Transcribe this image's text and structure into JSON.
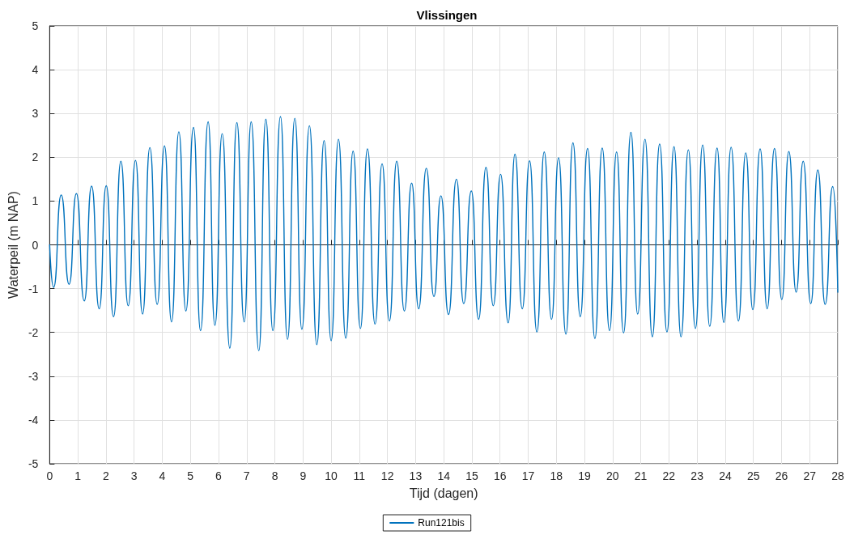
{
  "chart_data": {
    "type": "line",
    "title": "Vlissingen",
    "xlabel": "Tijd (dagen)",
    "ylabel": "Waterpeil (m NAP)",
    "xlim": [
      0,
      28
    ],
    "xticks": [
      0,
      1,
      2,
      3,
      4,
      5,
      6,
      7,
      8,
      9,
      10,
      11,
      12,
      13,
      14,
      15,
      16,
      17,
      18,
      19,
      20,
      21,
      22,
      23,
      24,
      25,
      26,
      27,
      28
    ],
    "ylim": [
      -5,
      5
    ],
    "yticks": [
      -5,
      -4,
      -3,
      -2,
      -1,
      0,
      1,
      2,
      3,
      4,
      5
    ],
    "grid": true,
    "legend": "bottom",
    "marker": "none",
    "line_style": "solid",
    "series": [
      {
        "name": "Run121bis",
        "color": "#0072bd",
        "x": [
          0,
          0.14,
          0.41,
          0.69,
          0.95,
          1.23,
          1.49,
          1.76,
          2.01,
          2.27,
          2.53,
          2.79,
          3.05,
          3.3,
          3.56,
          3.82,
          4.08,
          4.33,
          4.59,
          4.84,
          5.11,
          5.36,
          5.63,
          5.87,
          6.13,
          6.4,
          6.65,
          6.91,
          7.16,
          7.43,
          7.68,
          7.93,
          8.2,
          8.45,
          8.71,
          8.96,
          9.23,
          9.49,
          9.75,
          10.0,
          10.26,
          10.52,
          10.78,
          11.04,
          11.29,
          11.56,
          11.81,
          12.07,
          12.33,
          12.6,
          12.86,
          13.11,
          13.38,
          13.65,
          13.9,
          14.17,
          14.45,
          14.71,
          14.98,
          15.24,
          15.5,
          15.76,
          16.02,
          16.29,
          16.53,
          16.79,
          17.05,
          17.31,
          17.57,
          17.83,
          18.08,
          18.34,
          18.59,
          18.85,
          19.11,
          19.37,
          19.63,
          19.89,
          20.14,
          20.39,
          20.65,
          20.89,
          21.15,
          21.41,
          21.67,
          21.93,
          22.18,
          22.43,
          22.69,
          22.94,
          23.2,
          23.45,
          23.71,
          23.95,
          24.21,
          24.47,
          24.73,
          24.98,
          25.24,
          25.49,
          25.75,
          26.01,
          26.26,
          26.52,
          26.77,
          27.04,
          27.29,
          27.55,
          27.82,
          28.0
        ],
        "values": [
          0,
          -0.97,
          1.14,
          -0.9,
          1.17,
          -1.28,
          1.34,
          -1.46,
          1.35,
          -1.64,
          1.91,
          -1.39,
          1.93,
          -1.58,
          2.22,
          -1.36,
          2.26,
          -1.76,
          2.58,
          -1.51,
          2.68,
          -1.96,
          2.81,
          -1.84,
          2.54,
          -2.36,
          2.79,
          -1.76,
          2.81,
          -2.42,
          2.87,
          -1.96,
          2.93,
          -2.16,
          2.89,
          -1.93,
          2.72,
          -2.28,
          2.38,
          -2.19,
          2.41,
          -2.13,
          2.14,
          -1.91,
          2.19,
          -1.81,
          1.85,
          -1.74,
          1.91,
          -1.51,
          1.41,
          -1.46,
          1.75,
          -1.18,
          1.12,
          -1.59,
          1.5,
          -1.34,
          1.23,
          -1.7,
          1.77,
          -1.39,
          1.61,
          -1.78,
          2.07,
          -1.46,
          1.92,
          -1.99,
          2.12,
          -1.7,
          1.99,
          -2.04,
          2.33,
          -1.64,
          2.2,
          -2.14,
          2.21,
          -1.96,
          2.12,
          -2.01,
          2.57,
          -1.58,
          2.41,
          -2.1,
          2.3,
          -1.99,
          2.24,
          -2.1,
          2.17,
          -1.91,
          2.28,
          -1.86,
          2.21,
          -1.77,
          2.23,
          -1.74,
          2.1,
          -1.48,
          2.19,
          -1.46,
          2.2,
          -1.25,
          2.13,
          -1.08,
          1.91,
          -1.34,
          1.71,
          -1.36,
          1.33,
          -1.08
        ]
      }
    ]
  }
}
